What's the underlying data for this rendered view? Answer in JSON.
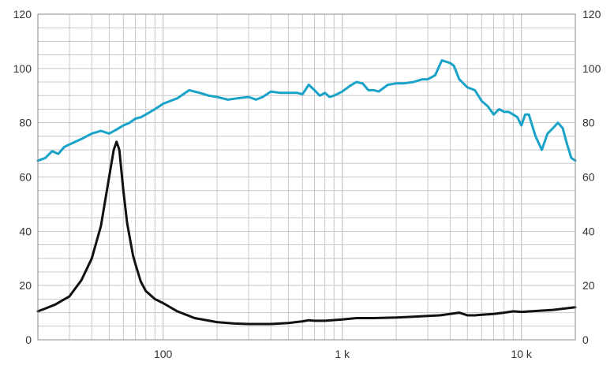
{
  "chart_data": {
    "type": "line",
    "title": "",
    "xlabel": "",
    "ylabel": "",
    "x_scale": "log",
    "xlim": [
      20,
      20000
    ],
    "ylim": [
      0,
      120
    ],
    "grid": true,
    "y_ticks": [
      "0",
      "20",
      "40",
      "60",
      "80",
      "100",
      "120"
    ],
    "y_tick_values": [
      0,
      20,
      40,
      60,
      80,
      100,
      120
    ],
    "x_ticks": [
      "100",
      "1 k",
      "10 k"
    ],
    "x_tick_values": [
      100,
      1000,
      10000
    ],
    "series": [
      {
        "color": "#1aa3c8",
        "x": [
          20,
          22,
          24,
          26,
          28,
          30,
          35,
          40,
          45,
          50,
          55,
          60,
          65,
          70,
          75,
          80,
          90,
          100,
          120,
          140,
          160,
          180,
          200,
          230,
          260,
          300,
          330,
          360,
          400,
          450,
          500,
          560,
          600,
          650,
          700,
          750,
          800,
          850,
          900,
          1000,
          1100,
          1200,
          1300,
          1400,
          1500,
          1600,
          1800,
          2000,
          2200,
          2500,
          2800,
          3000,
          3300,
          3600,
          4000,
          4200,
          4500,
          5000,
          5500,
          6000,
          6500,
          7000,
          7500,
          8000,
          8500,
          9000,
          9500,
          10000,
          10500,
          11000,
          12000,
          13000,
          14000,
          15000,
          16000,
          17000,
          18000,
          19000,
          20000
        ],
        "y": [
          66,
          67,
          69.5,
          68.5,
          71,
          72,
          74,
          76,
          77,
          76,
          77.5,
          79,
          80,
          81.5,
          82,
          83,
          85,
          87,
          89,
          92,
          91,
          90,
          89.5,
          88.5,
          89,
          89.5,
          88.5,
          89.5,
          91.5,
          91,
          91,
          91,
          90.5,
          94,
          92,
          90,
          91,
          89.5,
          90,
          91.5,
          93.5,
          95,
          94.5,
          92,
          92,
          91.5,
          94,
          94.5,
          94.5,
          95,
          96,
          96,
          97.5,
          103,
          102,
          101,
          96,
          93,
          92,
          88,
          86,
          83,
          85,
          84,
          84,
          83,
          82,
          79,
          83,
          83,
          75,
          70,
          76,
          78,
          80,
          78,
          72,
          67,
          66
        ]
      },
      {
        "color": "#111111",
        "x": [
          20,
          22,
          25,
          30,
          35,
          40,
          45,
          50,
          53,
          55,
          57,
          60,
          63,
          65,
          68,
          70,
          75,
          80,
          90,
          100,
          120,
          150,
          200,
          250,
          300,
          400,
          500,
          600,
          650,
          700,
          800,
          1000,
          1200,
          1500,
          2000,
          2500,
          3000,
          3500,
          4000,
          4500,
          5000,
          5500,
          6000,
          7000,
          8000,
          9000,
          10000,
          12000,
          15000,
          20000
        ],
        "y": [
          10.5,
          11.5,
          13,
          16,
          22,
          30,
          42,
          60,
          70,
          73,
          70,
          55,
          43,
          38,
          31,
          28,
          21.5,
          18,
          15,
          13.5,
          10.5,
          8,
          6.5,
          6,
          5.8,
          5.8,
          6.2,
          6.8,
          7.2,
          7,
          7,
          7.5,
          8,
          8,
          8.2,
          8.5,
          8.8,
          9,
          9.5,
          10,
          9,
          9,
          9.2,
          9.5,
          10,
          10.5,
          10.3,
          10.6,
          11,
          12
        ]
      }
    ]
  }
}
